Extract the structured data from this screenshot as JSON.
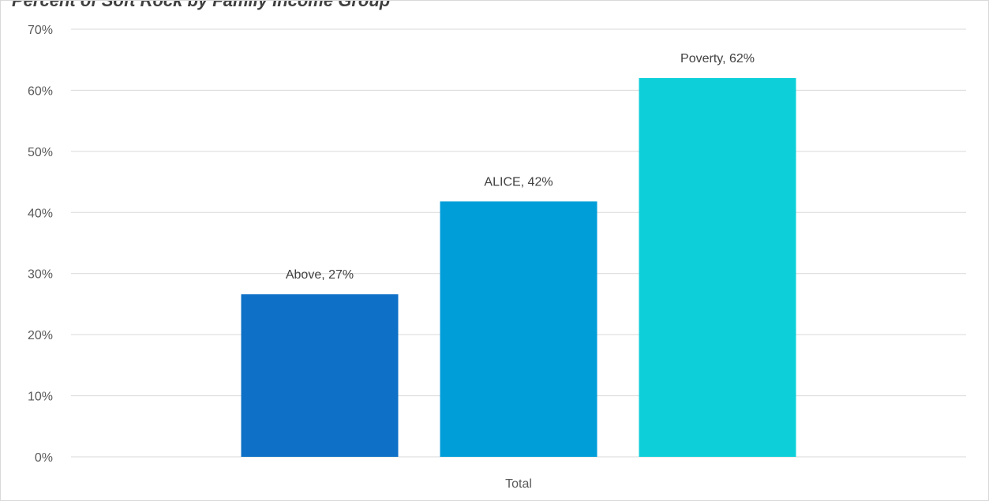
{
  "chart_data": {
    "type": "bar",
    "title": "Percent of Soft Rock by Family Income Group",
    "categories": [
      "Total"
    ],
    "series": [
      {
        "name": "Above",
        "values": [
          26.6
        ],
        "color": "#0e70c6",
        "label": "Above, 27%"
      },
      {
        "name": "ALICE",
        "values": [
          41.8
        ],
        "color": "#009ed9",
        "label": "ALICE, 42%"
      },
      {
        "name": "Poverty",
        "values": [
          62.0
        ],
        "color": "#0dcfd9",
        "label": "Poverty, 62%"
      }
    ],
    "ylim": [
      0,
      70
    ],
    "yticks": [
      0,
      10,
      20,
      30,
      40,
      50,
      60,
      70
    ],
    "ytick_labels": [
      "0%",
      "10%",
      "20%",
      "30%",
      "40%",
      "50%",
      "60%",
      "70%"
    ],
    "grid": true,
    "legend": "none",
    "xlabel": "",
    "ylabel": "",
    "colors": {
      "gridline": "#d9d9d9",
      "axis_text": "#595959",
      "label_text": "#404040"
    }
  }
}
